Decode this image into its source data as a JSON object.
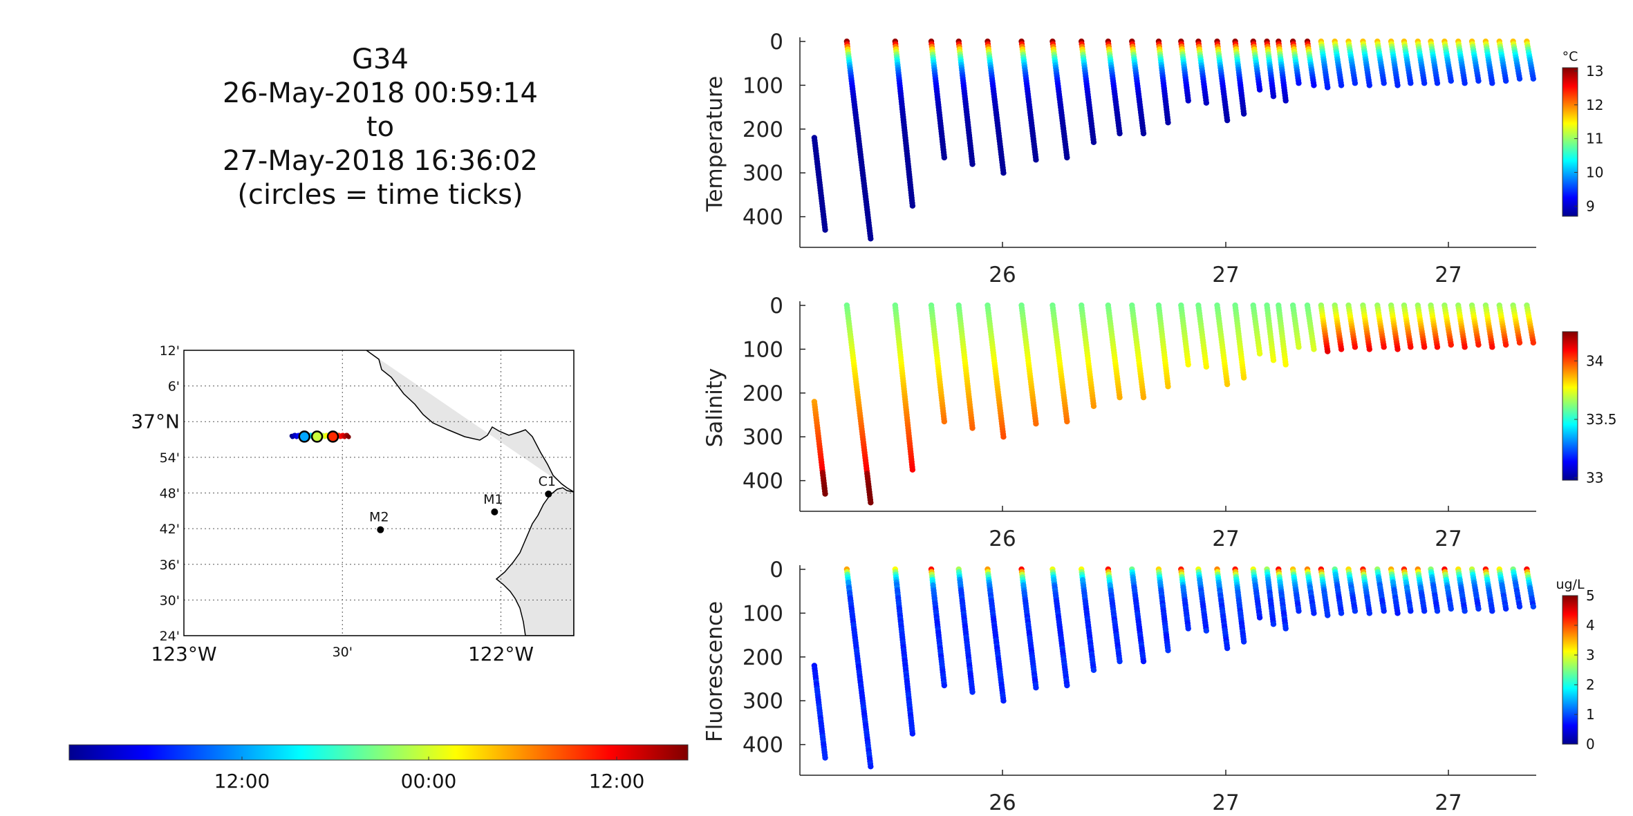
{
  "figure_title": {
    "line1": "G34",
    "line2": "26-May-2018 00:59:14",
    "line3": "to",
    "line4": "27-May-2018 16:36:02",
    "line5": "(circles = time ticks)"
  },
  "map": {
    "lat_ticks": [
      "12'",
      "6'",
      "37°N",
      "54'",
      "48'",
      "42'",
      "36'",
      "30'",
      "24'"
    ],
    "lon_ticks": [
      "123°W",
      "30'",
      "122°W"
    ],
    "stations": [
      {
        "name": "C1",
        "lon": -121.85,
        "lat": 36.797
      },
      {
        "name": "M1",
        "lon": -122.02,
        "lat": 36.747
      },
      {
        "name": "M2",
        "lon": -122.38,
        "lat": 36.697
      }
    ],
    "track": {
      "lon_start": -122.66,
      "lon_end": -122.48,
      "lat": 36.96
    },
    "time_tick_circles": [
      {
        "lon": -122.62,
        "color": "#00a6ff"
      },
      {
        "lon": -122.58,
        "color": "#c9ff3b"
      },
      {
        "lon": -122.53,
        "color": "#ff2a00"
      }
    ],
    "land_color": "#e6e6e6"
  },
  "time_colorbar": {
    "tick_labels": [
      "12:00",
      "00:00",
      "12:00"
    ]
  },
  "chart_data": [
    {
      "type": "scatter",
      "ylabel": "Temperature",
      "colorbar_unit": "°C",
      "colorbar_ticks": [
        "13",
        "12",
        "11",
        "10",
        "9"
      ],
      "colorbar_range": [
        8.7,
        13.1
      ],
      "ylim": [
        0,
        470
      ],
      "y_reversed": true,
      "yticks": [
        "0",
        "100",
        "200",
        "300",
        "400"
      ],
      "xtick_labels": [
        "26",
        "27",
        "27"
      ],
      "surface_value": 13,
      "deep_value": 8.8
    },
    {
      "type": "scatter",
      "ylabel": "Salinity",
      "colorbar_unit": "",
      "colorbar_ticks": [
        "34",
        "33.5",
        "33"
      ],
      "colorbar_range": [
        32.98,
        34.25
      ],
      "ylim": [
        0,
        470
      ],
      "y_reversed": true,
      "yticks": [
        "0",
        "100",
        "200",
        "300",
        "400"
      ],
      "xtick_labels": [
        "26",
        "27",
        "27"
      ],
      "surface_value": 33.6,
      "deep_value": 34.25
    },
    {
      "type": "scatter",
      "ylabel": "Fluorescence",
      "colorbar_unit": "ug/L",
      "colorbar_ticks": [
        "5",
        "4",
        "3",
        "2",
        "1",
        "0"
      ],
      "colorbar_range": [
        0,
        5
      ],
      "ylim": [
        0,
        470
      ],
      "y_reversed": true,
      "yticks": [
        "0",
        "100",
        "200",
        "300",
        "400"
      ],
      "xtick_labels": [
        "26",
        "27",
        "27"
      ],
      "surface_value": 4.2,
      "deep_value": 0.7
    }
  ],
  "profiles": [
    {
      "t0": 0.0,
      "t1": 0.015,
      "d0": 220,
      "d1": 430
    },
    {
      "t0": 0.045,
      "t1": 0.078,
      "d0": 0,
      "d1": 450
    },
    {
      "t0": 0.112,
      "t1": 0.136,
      "d0": 0,
      "d1": 375
    },
    {
      "t0": 0.162,
      "t1": 0.18,
      "d0": 0,
      "d1": 265
    },
    {
      "t0": 0.2,
      "t1": 0.219,
      "d0": 0,
      "d1": 280
    },
    {
      "t0": 0.24,
      "t1": 0.262,
      "d0": 0,
      "d1": 300
    },
    {
      "t0": 0.287,
      "t1": 0.307,
      "d0": 0,
      "d1": 270
    },
    {
      "t0": 0.33,
      "t1": 0.35,
      "d0": 0,
      "d1": 265
    },
    {
      "t0": 0.37,
      "t1": 0.387,
      "d0": 0,
      "d1": 230
    },
    {
      "t0": 0.407,
      "t1": 0.423,
      "d0": 0,
      "d1": 210
    },
    {
      "t0": 0.44,
      "t1": 0.456,
      "d0": 0,
      "d1": 210
    },
    {
      "t0": 0.477,
      "t1": 0.49,
      "d0": 0,
      "d1": 185
    },
    {
      "t0": 0.508,
      "t1": 0.518,
      "d0": 0,
      "d1": 135
    },
    {
      "t0": 0.532,
      "t1": 0.543,
      "d0": 0,
      "d1": 140
    },
    {
      "t0": 0.558,
      "t1": 0.572,
      "d0": 0,
      "d1": 180
    },
    {
      "t0": 0.583,
      "t1": 0.595,
      "d0": 0,
      "d1": 165
    },
    {
      "t0": 0.608,
      "t1": 0.617,
      "d0": 0,
      "d1": 110
    },
    {
      "t0": 0.627,
      "t1": 0.636,
      "d0": 0,
      "d1": 125
    },
    {
      "t0": 0.643,
      "t1": 0.653,
      "d0": 0,
      "d1": 135
    },
    {
      "t0": 0.663,
      "t1": 0.671,
      "d0": 0,
      "d1": 95
    },
    {
      "t0": 0.683,
      "t1": 0.692,
      "d0": 0,
      "d1": 100
    },
    {
      "t0": 0.702,
      "t1": 0.711,
      "d0": 0,
      "d1": 105
    },
    {
      "t0": 0.721,
      "t1": 0.73,
      "d0": 0,
      "d1": 100
    },
    {
      "t0": 0.74,
      "t1": 0.749,
      "d0": 0,
      "d1": 95
    },
    {
      "t0": 0.76,
      "t1": 0.769,
      "d0": 0,
      "d1": 100
    },
    {
      "t0": 0.78,
      "t1": 0.789,
      "d0": 0,
      "d1": 95
    },
    {
      "t0": 0.799,
      "t1": 0.808,
      "d0": 0,
      "d1": 100
    },
    {
      "t0": 0.817,
      "t1": 0.826,
      "d0": 0,
      "d1": 95
    },
    {
      "t0": 0.836,
      "t1": 0.845,
      "d0": 0,
      "d1": 95
    },
    {
      "t0": 0.854,
      "t1": 0.863,
      "d0": 0,
      "d1": 95
    },
    {
      "t0": 0.873,
      "t1": 0.882,
      "d0": 0,
      "d1": 90
    },
    {
      "t0": 0.892,
      "t1": 0.901,
      "d0": 0,
      "d1": 95
    },
    {
      "t0": 0.911,
      "t1": 0.92,
      "d0": 0,
      "d1": 90
    },
    {
      "t0": 0.93,
      "t1": 0.939,
      "d0": 0,
      "d1": 95
    },
    {
      "t0": 0.949,
      "t1": 0.958,
      "d0": 0,
      "d1": 90
    },
    {
      "t0": 0.968,
      "t1": 0.977,
      "d0": 0,
      "d1": 85
    },
    {
      "t0": 0.987,
      "t1": 0.996,
      "d0": 0,
      "d1": 85
    }
  ]
}
